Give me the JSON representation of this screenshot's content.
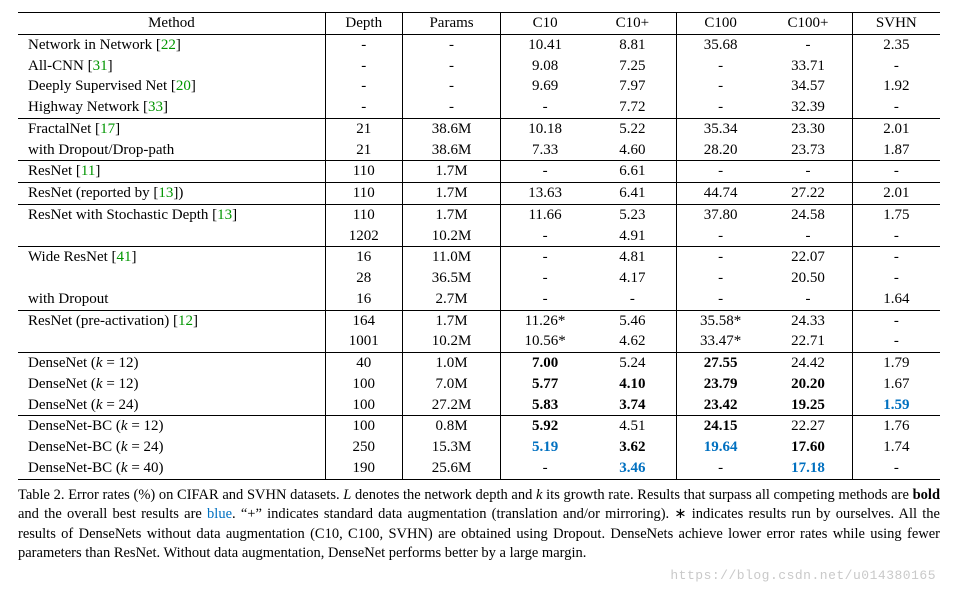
{
  "columns": [
    "Method",
    "Depth",
    "Params",
    "C10",
    "C10+",
    "C100",
    "C100+",
    "SVHN"
  ],
  "groups": [
    [
      {
        "method": {
          "text": "Network in Network [",
          "cite": "22",
          "after": "]"
        },
        "depth": "-",
        "params": "-",
        "c10": "10.41",
        "c10p": "8.81",
        "c100": "35.68",
        "c100p": "-",
        "svhn": "2.35"
      },
      {
        "method": {
          "text": "All-CNN [",
          "cite": "31",
          "after": "]"
        },
        "depth": "-",
        "params": "-",
        "c10": "9.08",
        "c10p": "7.25",
        "c100": "-",
        "c100p": "33.71",
        "svhn": "-"
      },
      {
        "method": {
          "text": "Deeply Supervised Net [",
          "cite": "20",
          "after": "]"
        },
        "depth": "-",
        "params": "-",
        "c10": "9.69",
        "c10p": "7.97",
        "c100": "-",
        "c100p": "34.57",
        "svhn": "1.92"
      },
      {
        "method": {
          "text": "Highway Network [",
          "cite": "33",
          "after": "]"
        },
        "depth": "-",
        "params": "-",
        "c10": "-",
        "c10p": "7.72",
        "c100": "-",
        "c100p": "32.39",
        "svhn": "-"
      }
    ],
    [
      {
        "method": {
          "text": "FractalNet [",
          "cite": "17",
          "after": "]"
        },
        "depth": "21",
        "params": "38.6M",
        "c10": "10.18",
        "c10p": "5.22",
        "c100": "35.34",
        "c100p": "23.30",
        "svhn": "2.01"
      },
      {
        "method": {
          "text": "with Dropout/Drop-path"
        },
        "depth": "21",
        "params": "38.6M",
        "c10": "7.33",
        "c10p": "4.60",
        "c100": "28.20",
        "c100p": "23.73",
        "svhn": "1.87"
      }
    ],
    [
      {
        "method": {
          "text": "ResNet [",
          "cite": "11",
          "after": "]"
        },
        "depth": "110",
        "params": "1.7M",
        "c10": "-",
        "c10p": "6.61",
        "c100": "-",
        "c100p": "-",
        "svhn": "-"
      }
    ],
    [
      {
        "method": {
          "text": "ResNet (reported by [",
          "cite": "13",
          "after": "])"
        },
        "depth": "110",
        "params": "1.7M",
        "c10": "13.63",
        "c10p": "6.41",
        "c100": "44.74",
        "c100p": "27.22",
        "svhn": "2.01"
      }
    ],
    [
      {
        "method": {
          "text": "ResNet with Stochastic Depth [",
          "cite": "13",
          "after": "]"
        },
        "depth": "110",
        "params": "1.7M",
        "c10": "11.66",
        "c10p": "5.23",
        "c100": "37.80",
        "c100p": "24.58",
        "svhn": "1.75"
      },
      {
        "method": {
          "text": ""
        },
        "depth": "1202",
        "params": "10.2M",
        "c10": "-",
        "c10p": "4.91",
        "c100": "-",
        "c100p": "-",
        "svhn": "-"
      }
    ],
    [
      {
        "method": {
          "text": "Wide ResNet [",
          "cite": "41",
          "after": "]"
        },
        "depth": "16",
        "params": "11.0M",
        "c10": "-",
        "c10p": "4.81",
        "c100": "-",
        "c100p": "22.07",
        "svhn": "-"
      },
      {
        "method": {
          "text": ""
        },
        "depth": "28",
        "params": "36.5M",
        "c10": "-",
        "c10p": "4.17",
        "c100": "-",
        "c100p": "20.50",
        "svhn": "-"
      },
      {
        "method": {
          "text": "with Dropout"
        },
        "depth": "16",
        "params": "2.7M",
        "c10": "-",
        "c10p": "-",
        "c100": "-",
        "c100p": "-",
        "svhn": "1.64"
      }
    ],
    [
      {
        "method": {
          "text": "ResNet (pre-activation) [",
          "cite": "12",
          "after": "]"
        },
        "depth": "164",
        "params": "1.7M",
        "c10": "11.26*",
        "c10p": "5.46",
        "c100": "35.58*",
        "c100p": "24.33",
        "svhn": "-"
      },
      {
        "method": {
          "text": ""
        },
        "depth": "1001",
        "params": "10.2M",
        "c10": "10.56*",
        "c10p": "4.62",
        "c100": "33.47*",
        "c100p": "22.71",
        "svhn": "-"
      }
    ],
    [
      {
        "method": {
          "text": "DenseNet (",
          "kvar": "k",
          "keq": " = 12)"
        },
        "depth": "40",
        "params": "1.0M",
        "c10": {
          "v": "7.00",
          "b": true
        },
        "c10p": "5.24",
        "c100": {
          "v": "27.55",
          "b": true
        },
        "c100p": "24.42",
        "svhn": "1.79"
      },
      {
        "method": {
          "text": "DenseNet (",
          "kvar": "k",
          "keq": " = 12)"
        },
        "depth": "100",
        "params": "7.0M",
        "c10": {
          "v": "5.77",
          "b": true
        },
        "c10p": {
          "v": "4.10",
          "b": true
        },
        "c100": {
          "v": "23.79",
          "b": true
        },
        "c100p": {
          "v": "20.20",
          "b": true
        },
        "svhn": "1.67"
      },
      {
        "method": {
          "text": "DenseNet (",
          "kvar": "k",
          "keq": " = 24)"
        },
        "depth": "100",
        "params": "27.2M",
        "c10": {
          "v": "5.83",
          "b": true
        },
        "c10p": {
          "v": "3.74",
          "b": true
        },
        "c100": {
          "v": "23.42",
          "b": true
        },
        "c100p": {
          "v": "19.25",
          "b": true
        },
        "svhn": {
          "v": "1.59",
          "b": true,
          "blue": true
        }
      }
    ],
    [
      {
        "method": {
          "text": "DenseNet-BC (",
          "kvar": "k",
          "keq": " = 12)"
        },
        "depth": "100",
        "params": "0.8M",
        "c10": {
          "v": "5.92",
          "b": true
        },
        "c10p": "4.51",
        "c100": {
          "v": "24.15",
          "b": true
        },
        "c100p": "22.27",
        "svhn": "1.76"
      },
      {
        "method": {
          "text": "DenseNet-BC (",
          "kvar": "k",
          "keq": " = 24)"
        },
        "depth": "250",
        "params": "15.3M",
        "c10": {
          "v": "5.19",
          "b": true,
          "blue": true
        },
        "c10p": {
          "v": "3.62",
          "b": true
        },
        "c100": {
          "v": "19.64",
          "b": true,
          "blue": true
        },
        "c100p": {
          "v": "17.60",
          "b": true
        },
        "svhn": "1.74"
      },
      {
        "method": {
          "text": "DenseNet-BC (",
          "kvar": "k",
          "keq": " = 40)"
        },
        "depth": "190",
        "params": "25.6M",
        "c10": "-",
        "c10p": {
          "v": "3.46",
          "b": true,
          "blue": true
        },
        "c100": "-",
        "c100p": {
          "v": "17.18",
          "b": true,
          "blue": true
        },
        "svhn": "-"
      }
    ]
  ],
  "caption": {
    "lead": "Table 2. Error rates (%) on CIFAR and SVHN datasets.  ",
    "L": "L",
    "p2": " denotes the network depth and ",
    "k": "k",
    "p3": " its growth rate.  Results that surpass all competing methods are ",
    "bold": "bold",
    "p4": " and the overall best results are ",
    "blue": "blue",
    "p5": ". “+” indicates standard data augmentation (translation and/or mirroring). ∗ indicates results run by ourselves.  All the results of DenseNets without data augmentation (C10, C100, SVHN) are obtained using Dropout. DenseNets achieve lower error rates while using fewer parameters than ResNet. Without data augmentation, DenseNet performs better by a large margin."
  },
  "watermark": "https://blog.csdn.net/u014380165"
}
